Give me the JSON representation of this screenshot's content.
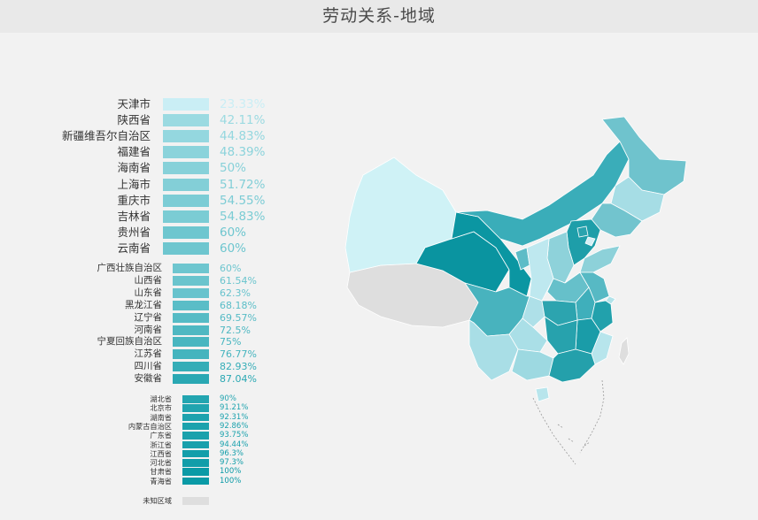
{
  "title": "劳动关系-地域",
  "chart_data": {
    "type": "map",
    "title": "劳动关系-地域",
    "groups": [
      {
        "items": [
          {
            "name": "天津市",
            "label": "23.33%",
            "value": 23.33
          },
          {
            "name": "陕西省",
            "label": "42.11%",
            "value": 42.11
          },
          {
            "name": "新疆维吾尔自治区",
            "label": "44.83%",
            "value": 44.83
          },
          {
            "name": "福建省",
            "label": "48.39%",
            "value": 48.39
          },
          {
            "name": "海南省",
            "label": "50%",
            "value": 50
          },
          {
            "name": "上海市",
            "label": "51.72%",
            "value": 51.72
          },
          {
            "name": "重庆市",
            "label": "54.55%",
            "value": 54.55
          },
          {
            "name": "吉林省",
            "label": "54.83%",
            "value": 54.83
          },
          {
            "name": "贵州省",
            "label": "60%",
            "value": 60
          },
          {
            "name": "云南省",
            "label": "60%",
            "value": 60
          }
        ]
      },
      {
        "items": [
          {
            "name": "广西壮族自治区",
            "label": "60%",
            "value": 60
          },
          {
            "name": "山西省",
            "label": "61.54%",
            "value": 61.54
          },
          {
            "name": "山东省",
            "label": "62.3%",
            "value": 62.3
          },
          {
            "name": "黑龙江省",
            "label": "68.18%",
            "value": 68.18
          },
          {
            "name": "辽宁省",
            "label": "69.57%",
            "value": 69.57
          },
          {
            "name": "河南省",
            "label": "72.5%",
            "value": 72.5
          },
          {
            "name": "宁夏回族自治区",
            "label": "75%",
            "value": 75
          },
          {
            "name": "江苏省",
            "label": "76.77%",
            "value": 76.77
          },
          {
            "name": "四川省",
            "label": "82.93%",
            "value": 82.93
          },
          {
            "name": "安徽省",
            "label": "87.04%",
            "value": 87.04
          }
        ]
      },
      {
        "items": [
          {
            "name": "湖北省",
            "label": "90%",
            "value": 90
          },
          {
            "name": "北京市",
            "label": "91.21%",
            "value": 91.21
          },
          {
            "name": "湖南省",
            "label": "92.31%",
            "value": 92.31
          },
          {
            "name": "内蒙古自治区",
            "label": "92.86%",
            "value": 92.86
          },
          {
            "name": "广东省",
            "label": "93.75%",
            "value": 93.75
          },
          {
            "name": "浙江省",
            "label": "94.44%",
            "value": 94.44
          },
          {
            "name": "江西省",
            "label": "96.3%",
            "value": 96.3
          },
          {
            "name": "河北省",
            "label": "97.3%",
            "value": 97.3
          },
          {
            "name": "甘肃省",
            "label": "100%",
            "value": 100
          },
          {
            "name": "青海省",
            "label": "100%",
            "value": 100
          }
        ]
      }
    ],
    "unknown": {
      "name": "未知区域"
    },
    "colors": {
      "low": "#d2f2f8",
      "high": "#0a9aa6",
      "unknown": "#dedede"
    }
  }
}
